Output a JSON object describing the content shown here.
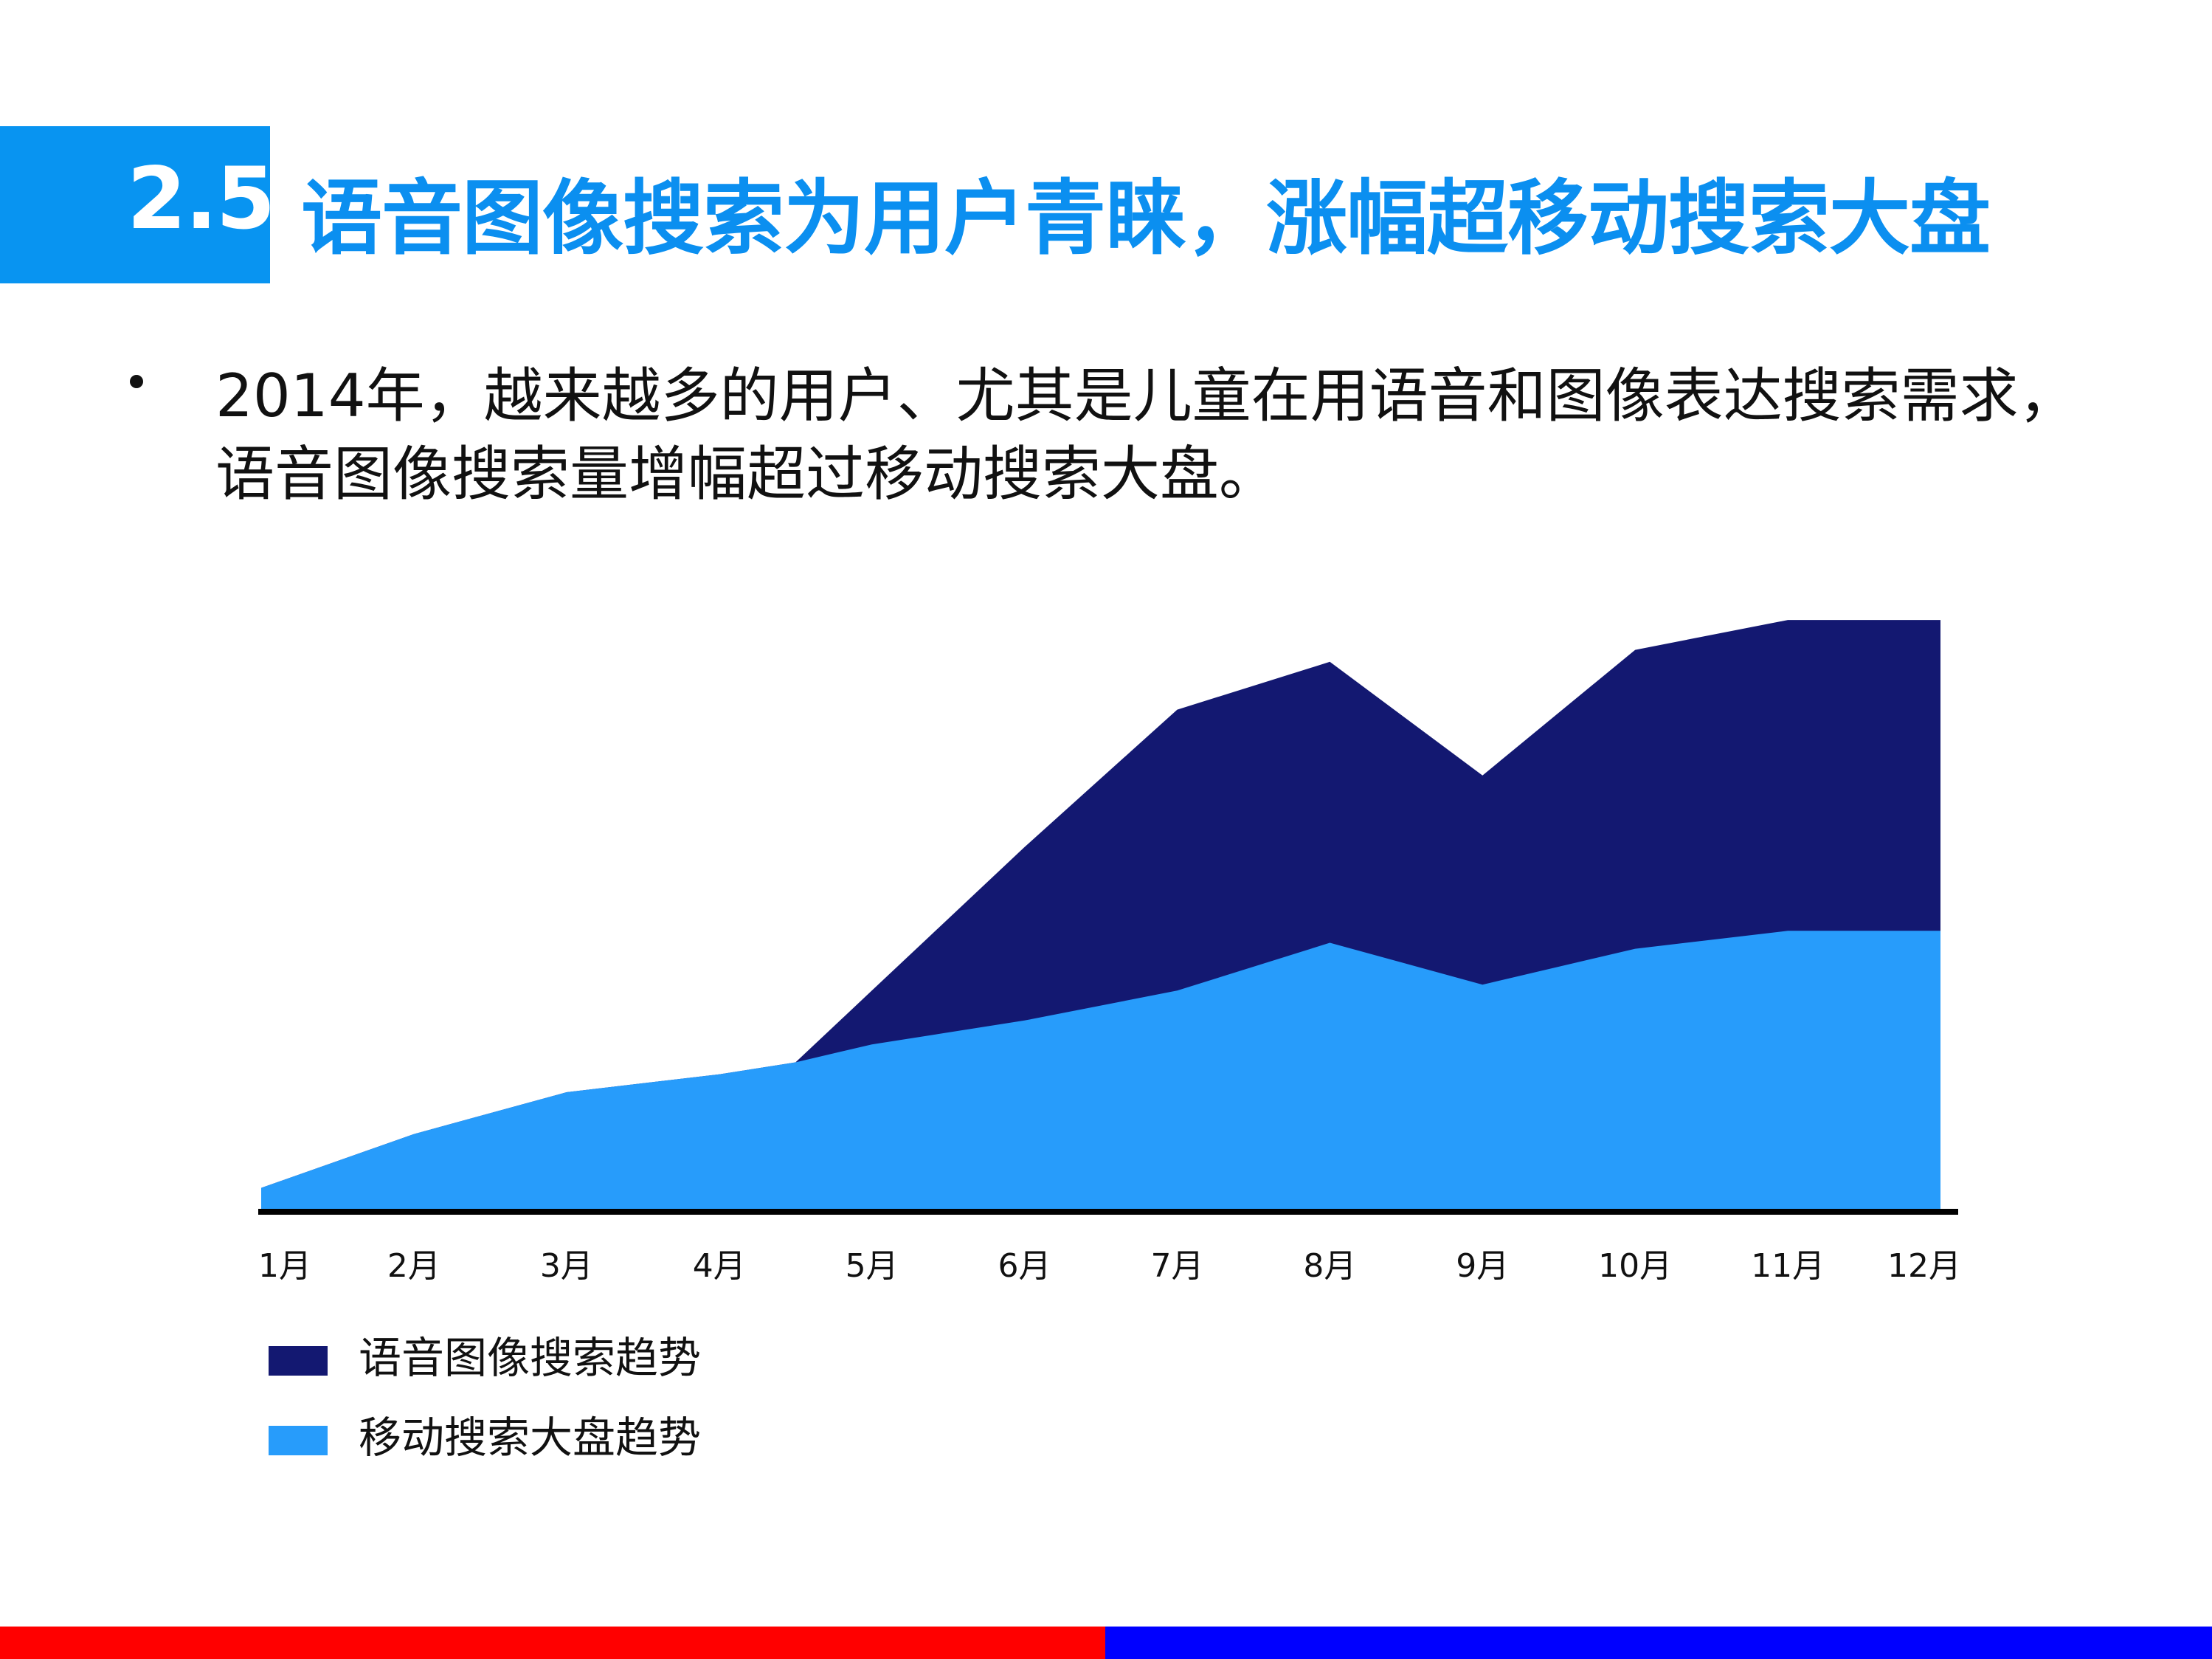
{
  "header": {
    "number": "2.5",
    "title": "语音图像搜索为用户青睐，涨幅超移动搜索大盘"
  },
  "bullet": {
    "line1": "2014年，越来越多的用户、尤其是儿童在用语音和图像表达搜索需求，",
    "line2": "语音图像搜索量增幅超过移动搜索大盘。"
  },
  "colors": {
    "accent": "#0894f1",
    "voice_series": "#131871",
    "mobile_series": "#279cfb",
    "footer_left": "#ff0000",
    "footer_right": "#0000ff"
  },
  "chart_data": {
    "type": "area",
    "title": "",
    "xlabel": "",
    "ylabel": "",
    "categories": [
      "1月",
      "2月",
      "3月",
      "4月",
      "5月",
      "6月",
      "7月",
      "8月",
      "9月",
      "10月",
      "11月",
      "12月"
    ],
    "x": [
      1,
      2,
      3,
      4,
      4.5,
      5,
      6,
      7,
      8,
      9,
      10,
      11,
      12
    ],
    "ylim": [
      0,
      100
    ],
    "grid": false,
    "legend_position": "bottom-left",
    "series": [
      {
        "name": "语音图像搜索趋势",
        "color": "#131871",
        "values": [
          4,
          13,
          20,
          23,
          25,
          37,
          61,
          84,
          92,
          73,
          94,
          99,
          99
        ]
      },
      {
        "name": "移动搜索大盘趋势",
        "color": "#279cfb",
        "values": [
          4,
          13,
          20,
          23,
          25,
          28,
          32,
          37,
          45,
          38,
          44,
          47,
          47
        ]
      }
    ]
  },
  "legend": {
    "items": [
      {
        "label": "语音图像搜索趋势",
        "color": "#131871"
      },
      {
        "label": "移动搜索大盘趋势",
        "color": "#279cfb"
      }
    ]
  }
}
